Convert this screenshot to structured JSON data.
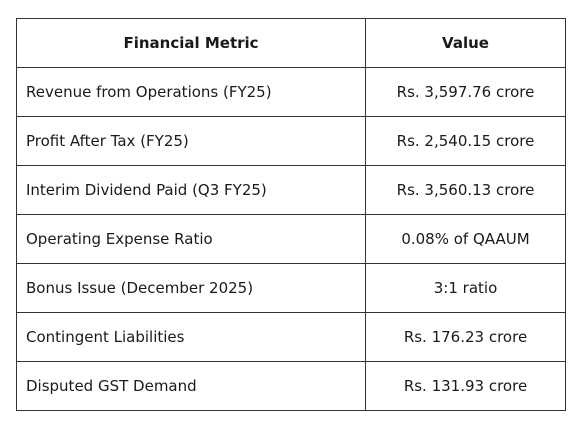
{
  "table": {
    "header": [
      "Financial Metric",
      "Value"
    ],
    "rows": [
      [
        "Revenue from Operations (FY25)",
        "Rs. 3,597.76 crore"
      ],
      [
        "Profit After Tax (FY25)",
        "Rs. 2,540.15 crore"
      ],
      [
        "Interim Dividend Paid (Q3 FY25)",
        "Rs. 3,560.13 crore"
      ],
      [
        "Operating Expense Ratio",
        "0.08% of QAAUM"
      ],
      [
        "Bonus Issue (December 2025)",
        "3:1 ratio"
      ],
      [
        "Contingent Liabilities",
        "Rs. 176.23 crore"
      ],
      [
        "Disputed GST Demand",
        "Rs. 131.93 crore"
      ]
    ]
  }
}
